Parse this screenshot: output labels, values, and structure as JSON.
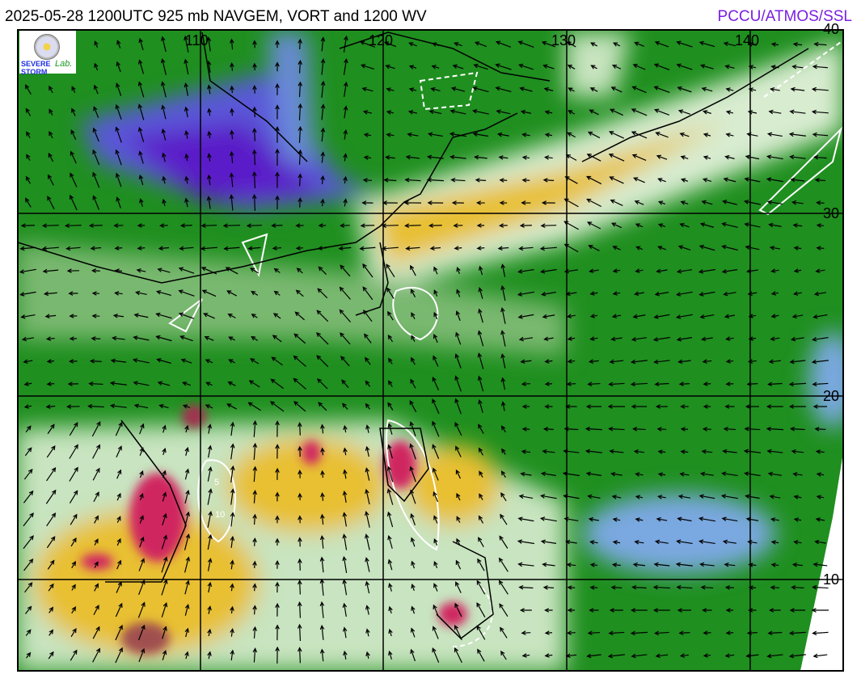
{
  "header": {
    "title": "2025-05-28 1200UTC 925 mb NAVGEM, VORT and 1200 WV",
    "credit": "PCCU/ATMOS/SSL",
    "credit_color": "#7a1fe0"
  },
  "logo": {
    "text": "Severe Storm Lab."
  },
  "map": {
    "longitude_labels": [
      "110",
      "120",
      "130",
      "140"
    ],
    "latitude_labels": [
      "40",
      "30",
      "20",
      "10"
    ],
    "contour_labels": [
      "5",
      "10"
    ],
    "colors": {
      "low_wv": "#1a8a1a",
      "mid_wv": "#cfe8c8",
      "high_wv": "#e8c020",
      "very_high_wv": "#d02860",
      "dry": "#6a7ad8",
      "very_dry": "#6a2cd0"
    }
  }
}
